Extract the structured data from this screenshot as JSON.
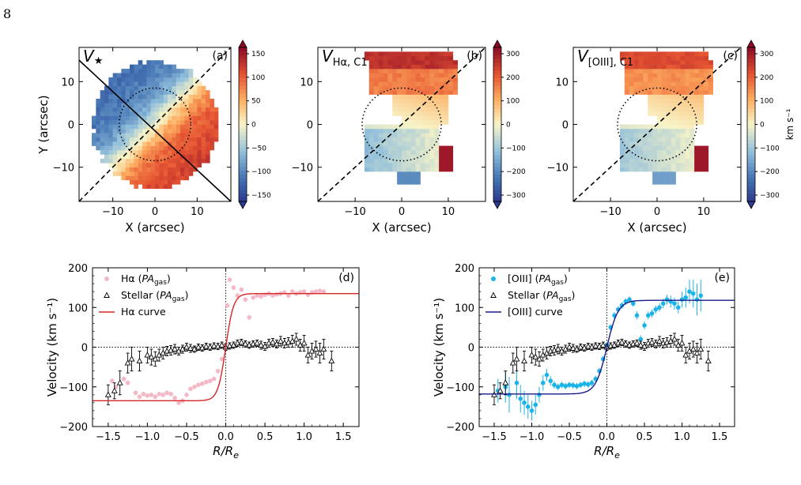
{
  "page_number": "8",
  "colors": {
    "halpha_points": "#f4b9c6",
    "halpha_curve": "#d62728",
    "oiii_points": "#1cb4e8",
    "oiii_curve": "#1a1a8c",
    "cmap_low": "#2b3a8f",
    "cmap_mid": "#f7f3c4",
    "cmap_high": "#8c0a26"
  },
  "chart_data": [
    {
      "type": "heatmap",
      "panel": "(a)",
      "title": "V★",
      "xlabel": "X (arcsec)",
      "ylabel": "Y (arcsec)",
      "xticks": [
        "−10",
        "0",
        "10"
      ],
      "yticks": [
        "10",
        "0",
        "−10"
      ],
      "xlim": [
        -18,
        18
      ],
      "ylim": [
        -18,
        18
      ],
      "colorbar": {
        "ticks": [
          "150",
          "100",
          "50",
          "0",
          "−50",
          "−100",
          "−150"
        ],
        "range": [
          -150,
          150
        ],
        "label": ""
      },
      "lines": [
        "solid diagonal: stellar kinematic axis",
        "dashed diagonal: gas kinematic axis",
        "dotted circle: R_e"
      ]
    },
    {
      "type": "heatmap",
      "panel": "(b)",
      "title": "V_{Hα, C1}",
      "xlabel": "X (arcsec)",
      "ylabel": "",
      "xticks": [
        "−10",
        "0",
        "10"
      ],
      "yticks": [
        "10",
        "0",
        "−10"
      ],
      "xlim": [
        -18,
        18
      ],
      "ylim": [
        -18,
        18
      ],
      "colorbar": {
        "ticks": [
          "300",
          "200",
          "100",
          "0",
          "−100",
          "−200",
          "−300"
        ],
        "range": [
          -300,
          300
        ],
        "label": ""
      }
    },
    {
      "type": "heatmap",
      "panel": "(c)",
      "title": "V_{[OIII], C1}",
      "xlabel": "X (arcsec)",
      "ylabel": "",
      "xticks": [
        "−10",
        "0",
        "10"
      ],
      "yticks": [
        "10",
        "0",
        "−10"
      ],
      "xlim": [
        -18,
        18
      ],
      "ylim": [
        -18,
        18
      ],
      "colorbar": {
        "ticks": [
          "300",
          "200",
          "100",
          "0",
          "−100",
          "−200",
          "−300"
        ],
        "range": [
          -300,
          300
        ],
        "label": "km s⁻¹"
      }
    },
    {
      "type": "scatter",
      "panel": "(d)",
      "xlabel": "R/R_e",
      "ylabel": "Velocity (km s⁻¹)",
      "xlim": [
        -1.7,
        1.7
      ],
      "ylim": [
        -200,
        200
      ],
      "xticks": [
        "−1.5",
        "−1.0",
        "−0.5",
        "0.0",
        "0.5",
        "1.0",
        "1.5"
      ],
      "yticks": [
        "200",
        "100",
        "0",
        "−100",
        "−200"
      ],
      "legend": [
        "Hα (PA_gas)",
        "Stellar (PA_gas)",
        "Hα curve"
      ],
      "legend_position": "top-left",
      "series": [
        {
          "name": "Hα (PA_gas)",
          "x": [
            -1.45,
            -1.4,
            -1.3,
            -1.25,
            -1.15,
            -1.1,
            -1.05,
            -1.0,
            -0.95,
            -0.9,
            -0.85,
            -0.8,
            -0.75,
            -0.7,
            -0.65,
            -0.6,
            -0.55,
            -0.5,
            -0.45,
            -0.4,
            -0.35,
            -0.3,
            -0.25,
            -0.2,
            -0.15,
            -0.1,
            -0.05,
            -0.02,
            0.02,
            0.05,
            0.1,
            0.15,
            0.2,
            0.25,
            0.3,
            0.35,
            0.4,
            0.45,
            0.5,
            0.55,
            0.6,
            0.65,
            0.7,
            0.75,
            0.8,
            0.85,
            0.9,
            0.95,
            1.0,
            1.05,
            1.1,
            1.15,
            1.2,
            1.25
          ],
          "y": [
            -85,
            -100,
            -80,
            -90,
            -115,
            -125,
            -118,
            -122,
            -120,
            -125,
            -118,
            -120,
            -115,
            -118,
            -128,
            -140,
            -135,
            -120,
            -105,
            -100,
            -95,
            -92,
            -88,
            -85,
            -80,
            -60,
            -30,
            5,
            105,
            170,
            150,
            130,
            145,
            120,
            75,
            125,
            130,
            128,
            132,
            135,
            130,
            133,
            135,
            138,
            130,
            140,
            135,
            138,
            140,
            132,
            138,
            140,
            142,
            140
          ]
        },
        {
          "name": "Stellar (PA_gas)",
          "x": [
            -1.5,
            -1.42,
            -1.35,
            -1.25,
            -1.2,
            -1.1,
            -1.0,
            -0.95,
            -0.9,
            -0.85,
            -0.8,
            -0.75,
            -0.7,
            -0.65,
            -0.6,
            -0.55,
            -0.5,
            -0.45,
            -0.4,
            -0.35,
            -0.3,
            -0.25,
            -0.2,
            -0.15,
            -0.1,
            -0.05,
            0.0,
            0.05,
            0.1,
            0.15,
            0.2,
            0.25,
            0.3,
            0.35,
            0.4,
            0.45,
            0.5,
            0.55,
            0.6,
            0.65,
            0.7,
            0.75,
            0.8,
            0.85,
            0.9,
            0.95,
            1.0,
            1.05,
            1.1,
            1.15,
            1.2,
            1.25,
            1.35
          ],
          "y": [
            -120,
            -110,
            -90,
            -40,
            -30,
            -35,
            -20,
            -25,
            -30,
            -20,
            -15,
            -10,
            -8,
            -5,
            -10,
            -5,
            0,
            -3,
            -5,
            0,
            -2,
            2,
            0,
            3,
            2,
            5,
            0,
            3,
            5,
            10,
            12,
            8,
            5,
            8,
            10,
            5,
            2,
            10,
            12,
            8,
            15,
            10,
            12,
            15,
            20,
            5,
            10,
            -20,
            -10,
            -5,
            -15,
            -5,
            -35
          ],
          "err": [
            25,
            20,
            30,
            25,
            30,
            25,
            20,
            20,
            18,
            15,
            15,
            12,
            12,
            12,
            10,
            10,
            10,
            10,
            8,
            8,
            8,
            8,
            8,
            8,
            8,
            8,
            8,
            8,
            8,
            8,
            8,
            8,
            8,
            8,
            8,
            10,
            10,
            10,
            10,
            10,
            12,
            12,
            12,
            15,
            15,
            15,
            20,
            20,
            20,
            20,
            25,
            25,
            25
          ]
        },
        {
          "name": "Hα curve",
          "vmax": 135,
          "scale": 0.1
        }
      ]
    },
    {
      "type": "scatter",
      "panel": "(e)",
      "xlabel": "R/R_e",
      "ylabel": "Velocity (km s⁻¹)",
      "xlim": [
        -1.7,
        1.7
      ],
      "ylim": [
        -200,
        200
      ],
      "xticks": [
        "−1.5",
        "−1.0",
        "−0.5",
        "0.0",
        "0.5",
        "1.0",
        "1.5"
      ],
      "yticks": [
        "200",
        "100",
        "0",
        "−100",
        "−200"
      ],
      "legend": [
        "[OIII] (PA_gas)",
        "Stellar (PA_gas)",
        "[OIII] curve"
      ],
      "legend_position": "top-left",
      "series": [
        {
          "name": "[OIII] (PA_gas)",
          "x": [
            -1.45,
            -1.35,
            -1.3,
            -1.2,
            -1.15,
            -1.1,
            -1.05,
            -1.0,
            -0.95,
            -0.9,
            -0.85,
            -0.8,
            -0.75,
            -0.7,
            -0.65,
            -0.6,
            -0.55,
            -0.5,
            -0.45,
            -0.4,
            -0.35,
            -0.3,
            -0.25,
            -0.2,
            -0.15,
            -0.1,
            -0.05,
            0.0,
            0.05,
            0.1,
            0.15,
            0.2,
            0.25,
            0.3,
            0.35,
            0.4,
            0.45,
            0.5,
            0.55,
            0.6,
            0.65,
            0.7,
            0.75,
            0.8,
            0.85,
            0.9,
            0.95,
            1.0,
            1.05,
            1.1,
            1.15,
            1.2,
            1.25
          ],
          "y": [
            -110,
            -100,
            -120,
            -90,
            -130,
            -140,
            -150,
            -160,
            -145,
            -120,
            -90,
            -70,
            -85,
            -95,
            -100,
            -95,
            -98,
            -95,
            -96,
            -98,
            -95,
            -92,
            -94,
            -90,
            -80,
            -60,
            -30,
            5,
            50,
            80,
            95,
            105,
            115,
            120,
            110,
            80,
            20,
            55,
            80,
            85,
            95,
            100,
            110,
            120,
            115,
            110,
            100,
            120,
            125,
            140,
            135,
            120,
            130
          ],
          "err": [
            30,
            40,
            45,
            40,
            35,
            30,
            30,
            25,
            25,
            20,
            20,
            15,
            12,
            10,
            8,
            8,
            8,
            8,
            8,
            8,
            8,
            8,
            8,
            8,
            8,
            8,
            8,
            8,
            8,
            8,
            8,
            8,
            8,
            8,
            8,
            10,
            10,
            10,
            10,
            10,
            10,
            10,
            12,
            12,
            15,
            15,
            15,
            20,
            25,
            30,
            35,
            40,
            40
          ]
        },
        {
          "name": "Stellar (PA_gas)",
          "x": [
            -1.5,
            -1.42,
            -1.35,
            -1.25,
            -1.2,
            -1.1,
            -1.0,
            -0.95,
            -0.9,
            -0.85,
            -0.8,
            -0.75,
            -0.7,
            -0.65,
            -0.6,
            -0.55,
            -0.5,
            -0.45,
            -0.4,
            -0.35,
            -0.3,
            -0.25,
            -0.2,
            -0.15,
            -0.1,
            -0.05,
            0.0,
            0.05,
            0.1,
            0.15,
            0.2,
            0.25,
            0.3,
            0.35,
            0.4,
            0.45,
            0.5,
            0.55,
            0.6,
            0.65,
            0.7,
            0.75,
            0.8,
            0.85,
            0.9,
            0.95,
            1.0,
            1.05,
            1.1,
            1.15,
            1.2,
            1.25,
            1.35
          ],
          "y": [
            -120,
            -110,
            -90,
            -40,
            -30,
            -35,
            -20,
            -25,
            -30,
            -20,
            -15,
            -10,
            -8,
            -5,
            -10,
            -5,
            0,
            -3,
            -5,
            0,
            -2,
            2,
            0,
            3,
            2,
            5,
            0,
            3,
            5,
            10,
            12,
            8,
            5,
            8,
            10,
            5,
            2,
            10,
            12,
            8,
            15,
            10,
            12,
            15,
            20,
            5,
            10,
            -20,
            -10,
            -5,
            -15,
            -5,
            -35
          ],
          "err": [
            25,
            20,
            30,
            25,
            30,
            25,
            20,
            20,
            18,
            15,
            15,
            12,
            12,
            12,
            10,
            10,
            10,
            10,
            8,
            8,
            8,
            8,
            8,
            8,
            8,
            8,
            8,
            8,
            8,
            8,
            8,
            8,
            8,
            8,
            8,
            10,
            10,
            10,
            10,
            10,
            12,
            12,
            12,
            15,
            15,
            15,
            20,
            20,
            20,
            20,
            25,
            25,
            25
          ]
        },
        {
          "name": "[OIII] curve",
          "vmax": 118,
          "scale": 0.15
        }
      ]
    }
  ]
}
